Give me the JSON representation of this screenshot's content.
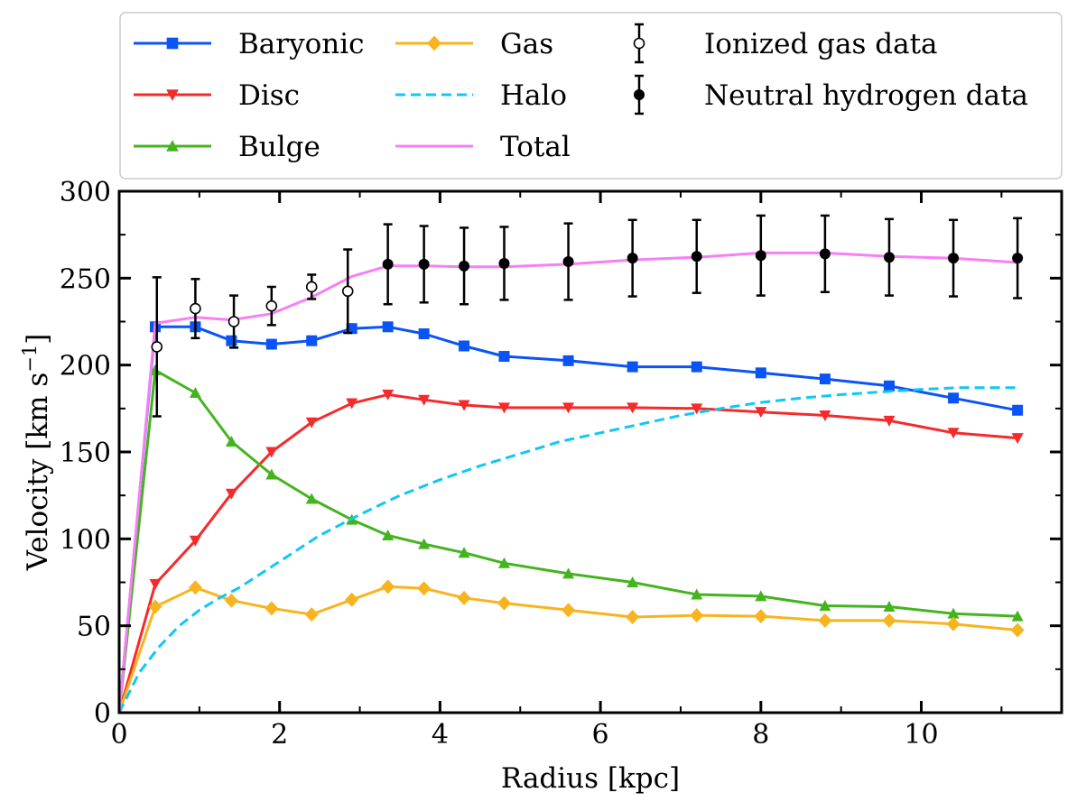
{
  "chart_data": {
    "type": "line",
    "xlabel": "Radius [kpc]",
    "ylabel": "Velocity [km s",
    "ylabel_sup": "−1",
    "ylabel_close": "]",
    "xlim": [
      0,
      11.75
    ],
    "ylim": [
      0,
      300
    ],
    "x_ticks": [
      0,
      2,
      4,
      6,
      8,
      10
    ],
    "x_tick_labels": [
      "0",
      "2",
      "4",
      "6",
      "8",
      "10"
    ],
    "y_ticks": [
      0,
      50,
      100,
      150,
      200,
      250,
      300
    ],
    "y_tick_labels": [
      "0",
      "50",
      "100",
      "150",
      "200",
      "250",
      "300"
    ],
    "legend_position": "above plot",
    "series": [
      {
        "name": "Baryonic",
        "color": "#0a54f5",
        "marker": "square",
        "dashed": false,
        "x": [
          0,
          0.45,
          0.95,
          1.4,
          1.9,
          2.4,
          2.9,
          3.35,
          3.8,
          4.3,
          4.8,
          5.6,
          6.4,
          7.2,
          8.0,
          8.8,
          9.6,
          10.4,
          11.2
        ],
        "y": [
          0,
          222,
          222,
          214,
          212,
          214,
          221,
          222,
          218,
          211,
          205,
          202.5,
          199,
          199,
          195.5,
          192,
          188,
          181,
          174
        ]
      },
      {
        "name": "Disc",
        "color": "#f52a2a",
        "marker": "triangle-down",
        "dashed": false,
        "x": [
          0,
          0.45,
          0.95,
          1.4,
          1.9,
          2.4,
          2.9,
          3.35,
          3.8,
          4.3,
          4.8,
          5.6,
          6.4,
          7.2,
          8.0,
          8.8,
          9.6,
          10.4,
          11.2
        ],
        "y": [
          0,
          74,
          99,
          126,
          150,
          167,
          178,
          183,
          180,
          177,
          175.5,
          175.5,
          175.5,
          175,
          173,
          171,
          168,
          161,
          158
        ]
      },
      {
        "name": "Bulge",
        "color": "#44b41e",
        "marker": "triangle-up",
        "dashed": false,
        "x": [
          0,
          0.45,
          0.95,
          1.4,
          1.9,
          2.4,
          2.9,
          3.35,
          3.8,
          4.3,
          4.8,
          5.6,
          6.4,
          7.2,
          8.0,
          8.8,
          9.6,
          10.4,
          11.2
        ],
        "y": [
          0,
          197,
          184,
          156,
          137,
          123,
          111,
          102,
          97,
          92,
          86,
          80,
          75,
          68,
          67,
          61.5,
          61,
          57,
          55.5
        ]
      },
      {
        "name": "Gas",
        "color": "#f8b41f",
        "marker": "diamond",
        "dashed": false,
        "x": [
          0,
          0.45,
          0.95,
          1.4,
          1.9,
          2.4,
          2.9,
          3.35,
          3.8,
          4.3,
          4.8,
          5.6,
          6.4,
          7.2,
          8.0,
          8.8,
          9.6,
          10.4,
          11.2
        ],
        "y": [
          0,
          61,
          72,
          64.5,
          60,
          56.5,
          65,
          72.5,
          71.5,
          66,
          63,
          59,
          55,
          56,
          55.5,
          53,
          53,
          51,
          47.5
        ]
      },
      {
        "name": "Halo",
        "color": "#0ec8f5",
        "marker": "none",
        "dashed": true,
        "x": [
          0,
          0.25,
          0.5,
          0.75,
          1.0,
          1.25,
          1.5,
          2.0,
          2.5,
          3.0,
          3.5,
          4.0,
          4.5,
          5.0,
          5.5,
          6.0,
          6.5,
          7.0,
          7.5,
          8.0,
          8.5,
          9.0,
          9.5,
          10.0,
          10.5,
          11.0,
          11.2
        ],
        "y": [
          0,
          23,
          38,
          50,
          59,
          66,
          72,
          87,
          102,
          114,
          125,
          134,
          142,
          149,
          156,
          161,
          166,
          171,
          175,
          178.5,
          181,
          183,
          184.5,
          186,
          187,
          187,
          187
        ]
      },
      {
        "name": "Total",
        "color": "#f77ff5",
        "marker": "none",
        "dashed": false,
        "x": [
          0,
          0.45,
          0.95,
          1.4,
          1.9,
          2.4,
          2.9,
          3.35,
          3.8,
          4.3,
          4.8,
          5.6,
          6.4,
          7.2,
          8.0,
          8.8,
          9.6,
          10.4,
          11.2
        ],
        "y": [
          0,
          224,
          227.5,
          226,
          229.5,
          239,
          251,
          257,
          257,
          256.5,
          256.5,
          258,
          260.5,
          262,
          264.5,
          264.5,
          262.5,
          261.5,
          259
        ]
      },
      {
        "name": "Ionized gas data",
        "color": "#000000",
        "marker": "open-circle",
        "errorbar": true,
        "x": [
          0.47,
          0.95,
          1.43,
          1.9,
          2.4,
          2.85
        ],
        "y": [
          210.5,
          232.5,
          225,
          234,
          245,
          242.5
        ],
        "err": [
          40,
          17,
          15,
          11,
          7,
          24
        ]
      },
      {
        "name": "Neutral hydrogen data",
        "color": "#000000",
        "marker": "filled-circle",
        "errorbar": true,
        "x": [
          3.35,
          3.8,
          4.3,
          4.8,
          5.6,
          6.4,
          7.2,
          8.0,
          8.8,
          9.6,
          10.4,
          11.2
        ],
        "y": [
          258,
          258,
          257,
          258.5,
          259.5,
          261.5,
          262.5,
          263,
          264,
          262,
          261.5,
          261.5
        ],
        "err": [
          23,
          22,
          22,
          21,
          22,
          22,
          21,
          23,
          22,
          22,
          22,
          23
        ]
      }
    ],
    "legend_columns": [
      [
        "Baryonic",
        "Disc",
        "Bulge"
      ],
      [
        "Gas",
        "Halo",
        "Total"
      ],
      [
        "Ionized gas data",
        "Neutral hydrogen data"
      ]
    ]
  }
}
